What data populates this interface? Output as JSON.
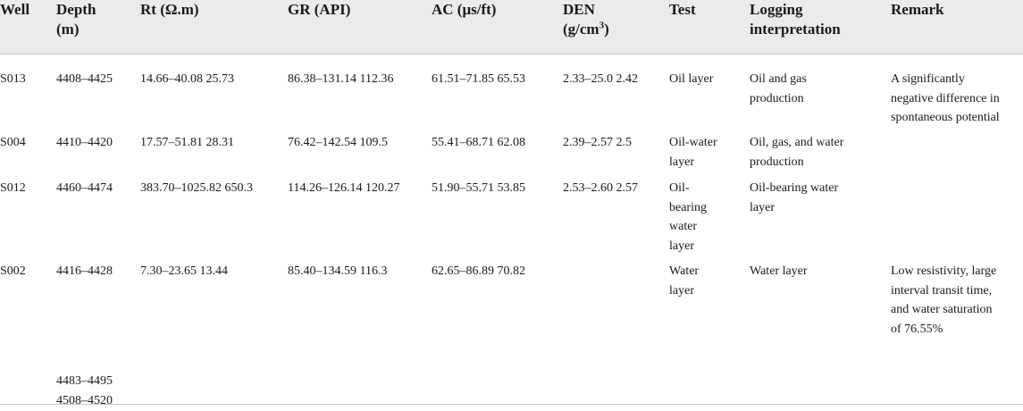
{
  "headers": {
    "well": "Well",
    "depth_l1": "Depth",
    "depth_l2": "(m)",
    "rt": "Rt (Ω.m)",
    "gr": "GR (API)",
    "ac": "AC (μs/ft)",
    "den_l1": "DEN",
    "den_l2_pre": "(g/cm",
    "den_l2_sup": "3",
    "den_l2_post": ")",
    "test": "Test",
    "interp_l1": "Logging",
    "interp_l2": "interpretation",
    "remark": "Remark"
  },
  "rows": [
    {
      "well": "S013",
      "depth": "4408–4425",
      "rt": "14.66–40.08 25.73",
      "gr": "86.38–131.14 112.36",
      "ac": "61.51–71.85 65.53",
      "den": "2.33–25.0 2.42",
      "test": [
        "Oil layer"
      ],
      "interp": [
        "Oil and gas",
        "production"
      ],
      "remark": [
        "A significantly",
        "negative difference in",
        "spontaneous potential"
      ]
    },
    {
      "well": "S004",
      "depth": "4410–4420",
      "rt": "17.57–51.81 28.31",
      "gr": "76.42–142.54 109.5",
      "ac": "55.41–68.71 62.08",
      "den": "2.39–2.57 2.5",
      "test": [
        "Oil-water",
        "layer"
      ],
      "interp": [
        "Oil, gas, and water",
        "production"
      ],
      "remark": []
    },
    {
      "well": "S012",
      "depth": "4460–4474",
      "rt": "383.70–1025.82 650.3",
      "gr": "114.26–126.14 120.27",
      "ac": "51.90–55.71 53.85",
      "den": "2.53–2.60 2.57",
      "test": [
        "Oil-",
        "bearing",
        "water",
        "layer"
      ],
      "interp": [
        "Oil-bearing water",
        "layer"
      ],
      "remark": []
    },
    {
      "well": "S002",
      "depth": "4416–4428",
      "rt": "7.30–23.65 13.44",
      "gr": "85.40–134.59 116.3",
      "ac": "62.65–86.89 70.82",
      "den": "",
      "test": [
        "Water",
        "layer"
      ],
      "interp": [
        "Water layer"
      ],
      "remark": [
        "Low resistivity, large",
        "interval transit time,",
        "and water saturation",
        "of 76.55%"
      ]
    },
    {
      "well": "",
      "depth": "4483–4495",
      "rt": "",
      "gr": "",
      "ac": "",
      "den": "",
      "test": [],
      "interp": [],
      "remark": []
    },
    {
      "well": "",
      "depth": "4508–4520",
      "rt": "",
      "gr": "",
      "ac": "",
      "den": "",
      "test": [],
      "interp": [],
      "remark": []
    }
  ]
}
